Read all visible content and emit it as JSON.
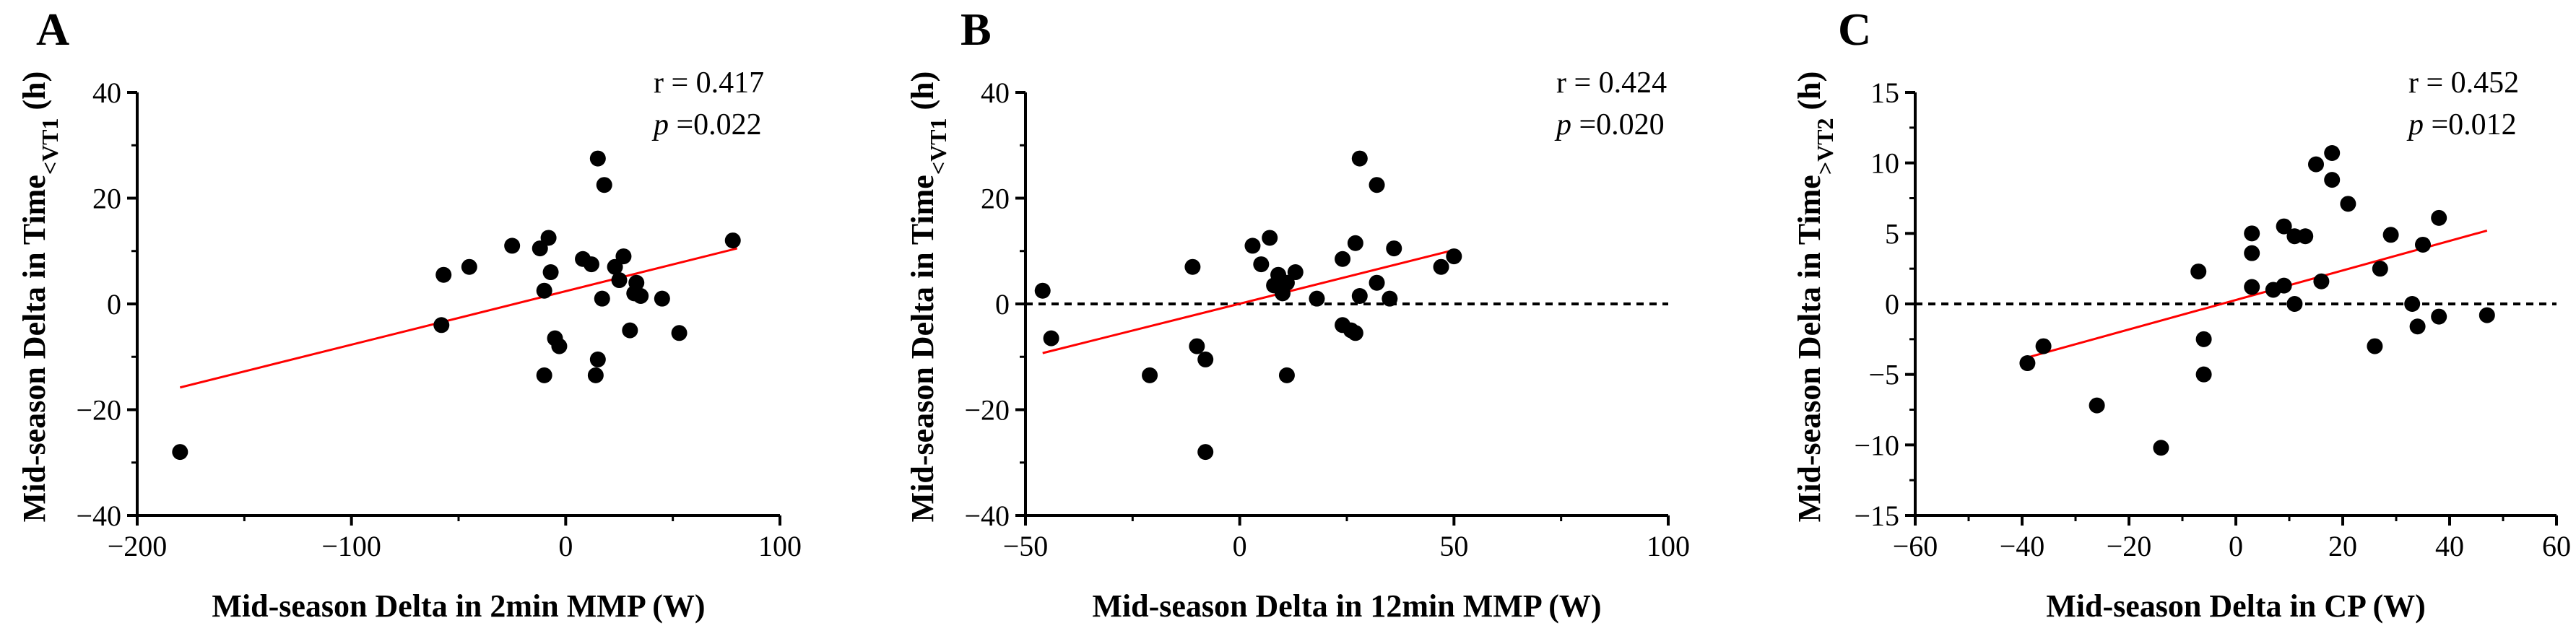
{
  "figure": {
    "panels": [
      {
        "letter": "A",
        "stat_r": "r = 0.417",
        "stat_p_label": "p",
        "stat_p_value": " =0.022"
      },
      {
        "letter": "B",
        "stat_r": "r = 0.424",
        "stat_p_label": "p",
        "stat_p_value": " =0.020"
      },
      {
        "letter": "C",
        "stat_r": "r = 0.452",
        "stat_p_label": "p",
        "stat_p_value": " =0.012"
      }
    ]
  },
  "chart_data": [
    {
      "type": "scatter",
      "panel": "A",
      "title": "",
      "xlabel": "Mid-season Delta in 2min MMP (W)",
      "ylabel_main": "Mid-season Delta in Time",
      "ylabel_sub": "<VT1",
      "ylabel_unit": " (h)",
      "xlim": [
        -200,
        100
      ],
      "ylim": [
        -40,
        40
      ],
      "xticks": [
        -200,
        -100,
        0,
        100
      ],
      "xtick_labels": [
        "−200",
        "−100",
        "0",
        "100"
      ],
      "yticks": [
        -40,
        -20,
        0,
        20,
        40
      ],
      "ytick_labels": [
        "−40",
        "−20",
        "0",
        "20",
        "40"
      ],
      "zero_line": false,
      "points": [
        {
          "x": -180,
          "y": -28
        },
        {
          "x": -58,
          "y": -4
        },
        {
          "x": -57,
          "y": 5.5
        },
        {
          "x": -45,
          "y": 7
        },
        {
          "x": -25,
          "y": 11
        },
        {
          "x": -12,
          "y": 10.5
        },
        {
          "x": -10,
          "y": 2.5
        },
        {
          "x": -10,
          "y": -13.5
        },
        {
          "x": -8,
          "y": 12.5
        },
        {
          "x": -7,
          "y": 6
        },
        {
          "x": -5,
          "y": -6.5
        },
        {
          "x": -3,
          "y": -8
        },
        {
          "x": 8,
          "y": 8.5
        },
        {
          "x": 12,
          "y": 7.5
        },
        {
          "x": 14,
          "y": -13.5
        },
        {
          "x": 15,
          "y": -10.5
        },
        {
          "x": 15,
          "y": 27.5
        },
        {
          "x": 17,
          "y": 1
        },
        {
          "x": 18,
          "y": 22.5
        },
        {
          "x": 23,
          "y": 7
        },
        {
          "x": 25,
          "y": 4.5
        },
        {
          "x": 27,
          "y": 9
        },
        {
          "x": 30,
          "y": -5
        },
        {
          "x": 32,
          "y": 2
        },
        {
          "x": 33,
          "y": 4
        },
        {
          "x": 35,
          "y": 1.5
        },
        {
          "x": 45,
          "y": 1
        },
        {
          "x": 53,
          "y": -5.5
        },
        {
          "x": 78,
          "y": 12
        }
      ],
      "fit_line": {
        "x0": -180,
        "y0": -15.8,
        "x1": 80,
        "y1": 10.5,
        "color": "#ff0000"
      }
    },
    {
      "type": "scatter",
      "panel": "B",
      "title": "",
      "xlabel": "Mid-season Delta in 12min MMP (W)",
      "ylabel_main": "Mid-season Delta in Time",
      "ylabel_sub": "<VT1",
      "ylabel_unit": " (h)",
      "xlim": [
        -50,
        100
      ],
      "ylim": [
        -40,
        40
      ],
      "xticks": [
        -50,
        0,
        50,
        100
      ],
      "xtick_labels": [
        "−50",
        "0",
        "50",
        "100"
      ],
      "yticks": [
        -40,
        -20,
        0,
        20,
        40
      ],
      "ytick_labels": [
        "−40",
        "−20",
        "0",
        "20",
        "40"
      ],
      "zero_line": true,
      "points": [
        {
          "x": -46,
          "y": 2.5
        },
        {
          "x": -44,
          "y": -6.5
        },
        {
          "x": -21,
          "y": -13.5
        },
        {
          "x": -11,
          "y": 7
        },
        {
          "x": -10,
          "y": -8
        },
        {
          "x": -8,
          "y": -10.5
        },
        {
          "x": -8,
          "y": -28
        },
        {
          "x": 3,
          "y": 11
        },
        {
          "x": 5,
          "y": 7.5
        },
        {
          "x": 7,
          "y": 12.5
        },
        {
          "x": 8,
          "y": 3.5
        },
        {
          "x": 9,
          "y": 5.5
        },
        {
          "x": 10,
          "y": 2
        },
        {
          "x": 11,
          "y": -13.5
        },
        {
          "x": 11,
          "y": 4
        },
        {
          "x": 13,
          "y": 6
        },
        {
          "x": 18,
          "y": 1
        },
        {
          "x": 24,
          "y": 8.5
        },
        {
          "x": 24,
          "y": -4
        },
        {
          "x": 26,
          "y": -5
        },
        {
          "x": 27,
          "y": 11.5
        },
        {
          "x": 27,
          "y": -5.5
        },
        {
          "x": 28,
          "y": 27.5
        },
        {
          "x": 28,
          "y": 1.5
        },
        {
          "x": 32,
          "y": 22.5
        },
        {
          "x": 32,
          "y": 4
        },
        {
          "x": 35,
          "y": 1
        },
        {
          "x": 36,
          "y": 10.5
        },
        {
          "x": 47,
          "y": 7
        },
        {
          "x": 50,
          "y": 9
        }
      ],
      "fit_line": {
        "x0": -46,
        "y0": -9.3,
        "x1": 50,
        "y1": 10.2,
        "color": "#ff0000"
      }
    },
    {
      "type": "scatter",
      "panel": "C",
      "title": "",
      "xlabel": "Mid-season Delta in CP (W)",
      "ylabel_main": "Mid-season Delta in Time",
      "ylabel_sub": ">VT2",
      "ylabel_unit": " (h)",
      "xlim": [
        -60,
        60
      ],
      "ylim": [
        -15,
        15
      ],
      "xticks": [
        -60,
        -40,
        -20,
        0,
        20,
        40,
        60
      ],
      "xtick_labels": [
        "−60",
        "−40",
        "−20",
        "0",
        "20",
        "40",
        "60"
      ],
      "yticks": [
        -15,
        -10,
        -5,
        0,
        5,
        10,
        15
      ],
      "ytick_labels": [
        "−15",
        "−10",
        "−5",
        "0",
        "5",
        "10",
        "15"
      ],
      "zero_line": true,
      "points": [
        {
          "x": -39,
          "y": -4.2
        },
        {
          "x": -36,
          "y": -3
        },
        {
          "x": -26,
          "y": -7.2
        },
        {
          "x": -14,
          "y": -10.2
        },
        {
          "x": -7,
          "y": 2.3
        },
        {
          "x": -6,
          "y": -2.5
        },
        {
          "x": -6,
          "y": -5
        },
        {
          "x": 3,
          "y": 5
        },
        {
          "x": 3,
          "y": 3.6
        },
        {
          "x": 3,
          "y": 1.2
        },
        {
          "x": 7,
          "y": 1
        },
        {
          "x": 9,
          "y": 5.5
        },
        {
          "x": 9,
          "y": 1.3
        },
        {
          "x": 11,
          "y": 4.8
        },
        {
          "x": 11,
          "y": 0
        },
        {
          "x": 13,
          "y": 4.8
        },
        {
          "x": 15,
          "y": 9.9
        },
        {
          "x": 16,
          "y": 1.6
        },
        {
          "x": 18,
          "y": 10.7
        },
        {
          "x": 18,
          "y": 8.8
        },
        {
          "x": 21,
          "y": 7.1
        },
        {
          "x": 26,
          "y": -3
        },
        {
          "x": 27,
          "y": 2.5
        },
        {
          "x": 29,
          "y": 4.9
        },
        {
          "x": 33,
          "y": 0
        },
        {
          "x": 34,
          "y": -1.6
        },
        {
          "x": 35,
          "y": 4.2
        },
        {
          "x": 38,
          "y": 6.1
        },
        {
          "x": 38,
          "y": -0.9
        },
        {
          "x": 47,
          "y": -0.8
        }
      ],
      "fit_line": {
        "x0": -39,
        "y0": -3.8,
        "x1": 47,
        "y1": 5.2,
        "color": "#ff0000"
      }
    }
  ]
}
